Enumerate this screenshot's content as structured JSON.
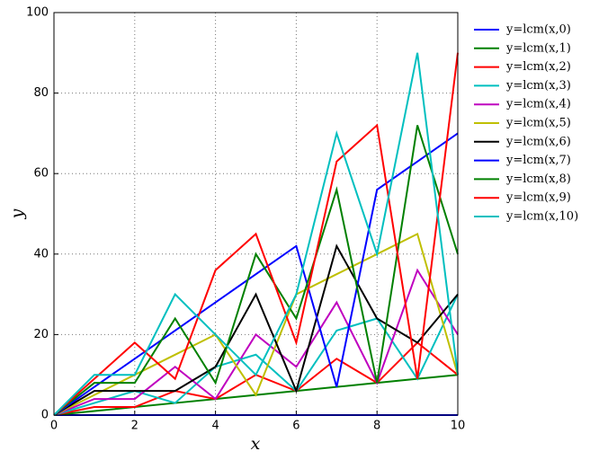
{
  "chart_data": {
    "type": "line",
    "x_label": "x",
    "y_label": "y",
    "x": [
      0,
      1,
      2,
      3,
      4,
      5,
      6,
      7,
      8,
      9,
      10
    ],
    "xlim": [
      0,
      10
    ],
    "xticks": [
      0,
      2,
      4,
      6,
      8,
      10
    ],
    "ylim": [
      0,
      100
    ],
    "yticks": [
      0,
      20,
      40,
      60,
      80,
      100
    ],
    "grid": true,
    "legend": "outside right",
    "series": [
      {
        "name": "y=lcm(x,0)",
        "color": "#0000ff",
        "values": [
          0,
          0,
          0,
          0,
          0,
          0,
          0,
          0,
          0,
          0,
          0
        ]
      },
      {
        "name": "y=lcm(x,1)",
        "color": "#008000",
        "values": [
          0,
          1,
          2,
          3,
          4,
          5,
          6,
          7,
          8,
          9,
          10
        ]
      },
      {
        "name": "y=lcm(x,2)",
        "color": "#ff0000",
        "values": [
          0,
          2,
          2,
          6,
          4,
          10,
          6,
          14,
          8,
          18,
          10
        ]
      },
      {
        "name": "y=lcm(x,3)",
        "color": "#00bfbf",
        "values": [
          0,
          3,
          6,
          3,
          12,
          15,
          6,
          21,
          24,
          9,
          30
        ]
      },
      {
        "name": "y=lcm(x,4)",
        "color": "#bf00bf",
        "values": [
          0,
          4,
          4,
          12,
          4,
          20,
          12,
          28,
          8,
          36,
          20
        ]
      },
      {
        "name": "y=lcm(x,5)",
        "color": "#bfbf00",
        "values": [
          0,
          5,
          10,
          15,
          20,
          5,
          30,
          35,
          40,
          45,
          10
        ]
      },
      {
        "name": "y=lcm(x,6)",
        "color": "#000000",
        "values": [
          0,
          6,
          6,
          6,
          12,
          30,
          6,
          42,
          24,
          18,
          30
        ]
      },
      {
        "name": "y=lcm(x,7)",
        "color": "#0000ff",
        "values": [
          0,
          7,
          14,
          21,
          28,
          35,
          42,
          7,
          56,
          63,
          70
        ]
      },
      {
        "name": "y=lcm(x,8)",
        "color": "#008000",
        "values": [
          0,
          8,
          8,
          24,
          8,
          40,
          24,
          56,
          8,
          72,
          40
        ]
      },
      {
        "name": "y=lcm(x,9)",
        "color": "#ff0000",
        "values": [
          0,
          9,
          18,
          9,
          36,
          45,
          18,
          63,
          72,
          9,
          90
        ]
      },
      {
        "name": "y=lcm(x,10)",
        "color": "#00bfbf",
        "values": [
          0,
          10,
          10,
          30,
          20,
          10,
          30,
          70,
          40,
          90,
          10
        ]
      }
    ]
  }
}
